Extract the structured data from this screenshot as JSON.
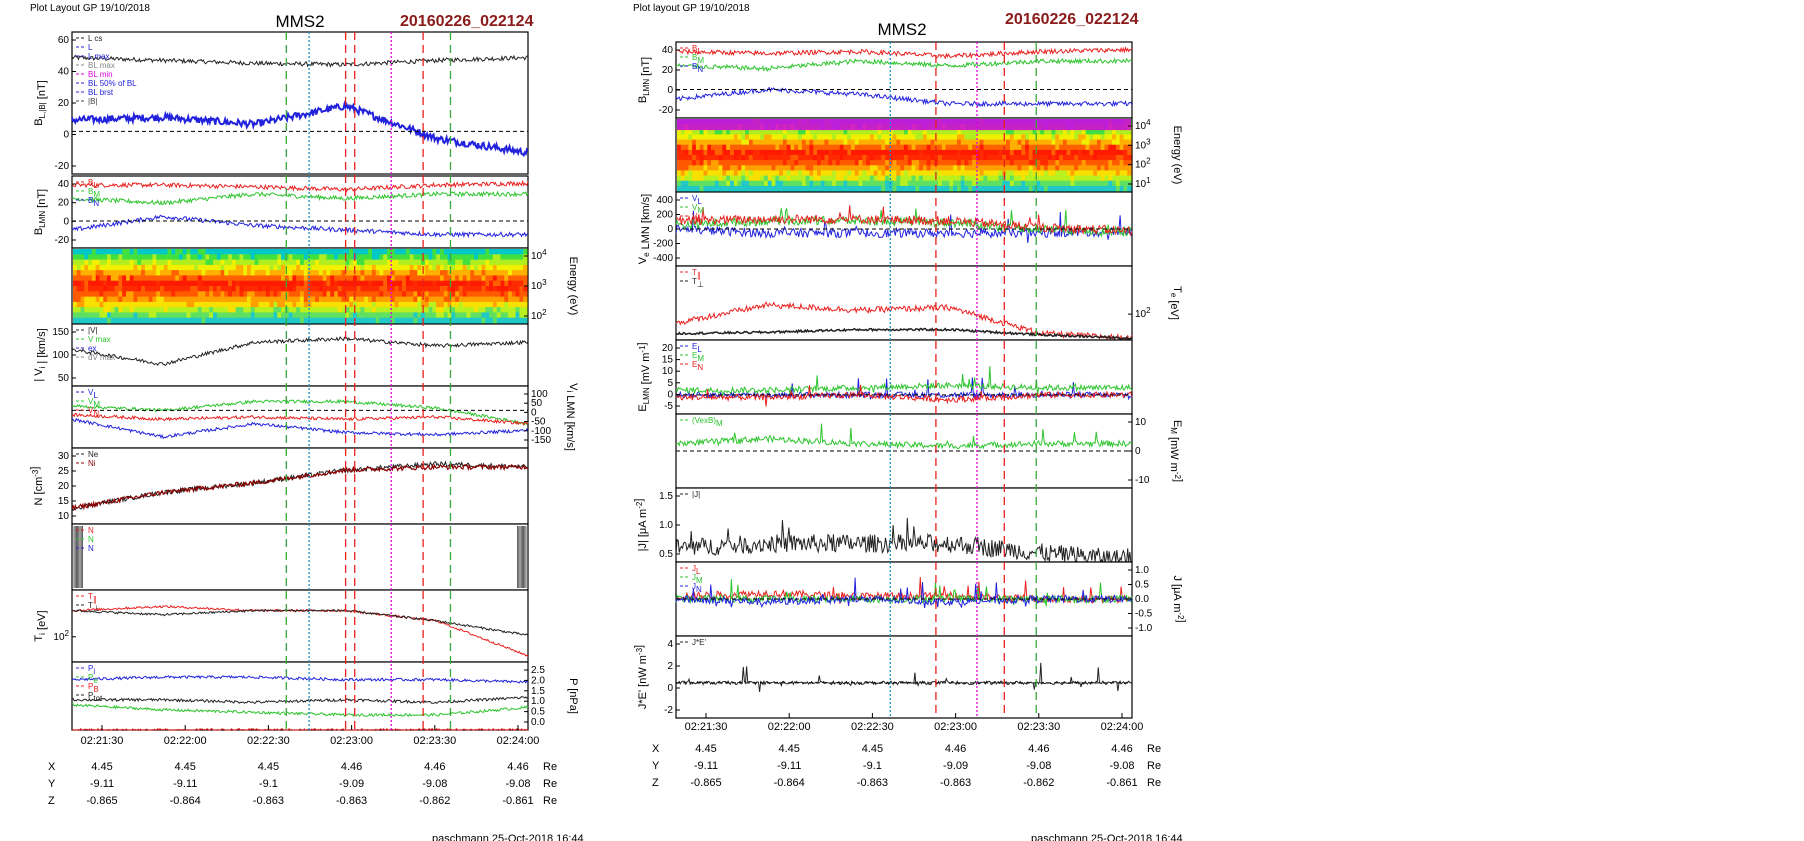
{
  "colors": {
    "brand_red": "#8b1a1a",
    "red": "#e8201e",
    "green": "#2ec42e",
    "blue": "#2222dd",
    "gray": "#707070",
    "magenta": "#dd00dd",
    "cyan": "#1a8fc8",
    "dash_green": "#3aa83a"
  },
  "left": {
    "layout_label": "Plot Layout GP 19/10/2018",
    "spacecraft": "MMS2",
    "event": "20160226_022124",
    "footer": "paschmann 25-Oct-2018 16:44",
    "time_ticks": [
      "02:21:30",
      "02:22:00",
      "02:22:30",
      "02:23:00",
      "02:23:30",
      "02:24:00"
    ],
    "vlines": [
      {
        "t": 47,
        "color": "green",
        "style": "dash"
      },
      {
        "t": 52,
        "color": "cyan",
        "style": "dot"
      },
      {
        "t": 60,
        "color": "red",
        "style": "dash"
      },
      {
        "t": 62,
        "color": "red",
        "style": "dash"
      },
      {
        "t": 70,
        "color": "magenta",
        "style": "dot"
      },
      {
        "t": 77,
        "color": "red",
        "style": "dash"
      },
      {
        "t": 83,
        "color": "green",
        "style": "dash"
      }
    ],
    "coords": {
      "rows": [
        {
          "label": "X",
          "values": [
            "4.45",
            "4.45",
            "4.45",
            "4.46",
            "4.46",
            "4.46"
          ],
          "unit": "Re"
        },
        {
          "label": "Y",
          "values": [
            "-9.11",
            "-9.11",
            "-9.1",
            "-9.09",
            "-9.08",
            "-9.08"
          ],
          "unit": "Re"
        },
        {
          "label": "Z",
          "values": [
            "-0.865",
            "-0.864",
            "-0.863",
            "-0.863",
            "-0.862",
            "-0.861"
          ],
          "unit": "Re"
        }
      ]
    },
    "panels": [
      {
        "ylabel": "B_L,|B| [nT]",
        "ylabel_side": "left",
        "ticks": [
          "60",
          "40",
          "20",
          "0",
          "-20"
        ],
        "legend": [
          "L cs",
          "L",
          "L max",
          "BL max",
          "BL min",
          "BL 50% of BL",
          "BL brst",
          "|B|"
        ]
      },
      {
        "ylabel": "B_LMN [nT]",
        "ylabel_side": "left",
        "ticks": [
          "40",
          "20",
          "0",
          "-20"
        ],
        "legend": [
          "B_L",
          "B_M",
          "B_N"
        ]
      },
      {
        "ylabel": "Energy (eV)",
        "ylabel_side": "right",
        "ticks": [
          "10^4",
          "10^3",
          "10^2"
        ],
        "legend": []
      },
      {
        "ylabel": "| V_i | [km/s]",
        "ylabel_side": "left",
        "ticks": [
          "150",
          "100",
          "50"
        ],
        "legend": [
          "|V|",
          "V max",
          "ex",
          "dV max"
        ]
      },
      {
        "ylabel": "V_i LMN [km/s]",
        "ylabel_side": "right",
        "ticks": [
          "100",
          "50",
          "0",
          "-50",
          "-100",
          "-150"
        ],
        "legend": [
          "V_L",
          "V_M",
          "V_N"
        ]
      },
      {
        "ylabel": "N [cm^-3]",
        "ylabel_side": "left",
        "ticks": [
          "30",
          "25",
          "20",
          "15",
          "10"
        ],
        "legend": [
          "Ne",
          "Ni"
        ]
      },
      {
        "ylabel": "",
        "ylabel_side": "left",
        "ticks": [],
        "legend": [
          "N",
          "N",
          "N"
        ]
      },
      {
        "ylabel": "T_i [eV]",
        "ylabel_side": "left",
        "ticks": [
          "10^2"
        ],
        "legend": [
          "T_∥",
          "T_⊥"
        ]
      },
      {
        "ylabel": "P [nPa]",
        "ylabel_side": "right",
        "ticks": [
          "2.5",
          "2.0",
          "1.5",
          "1.0",
          "0.5",
          "0.0"
        ],
        "legend": [
          "P_i",
          "P_e",
          "P_B",
          "P_tot"
        ]
      }
    ]
  },
  "right": {
    "layout_label": "Plot layout GP 19/10/2018",
    "spacecraft": "MMS2",
    "event": "20160226_022124",
    "footer": "paschmann 25-Oct-2018 16:44",
    "time_ticks": [
      "02:21:30",
      "02:22:00",
      "02:22:30",
      "02:23:00",
      "02:23:30",
      "02:24:00"
    ],
    "vlines": [
      {
        "t": 47,
        "color": "cyan",
        "style": "dot"
      },
      {
        "t": 57,
        "color": "red",
        "style": "dash"
      },
      {
        "t": 66,
        "color": "magenta",
        "style": "dot"
      },
      {
        "t": 72,
        "color": "red",
        "style": "dash"
      },
      {
        "t": 79,
        "color": "green",
        "style": "dash"
      }
    ],
    "coords": {
      "rows": [
        {
          "label": "X",
          "values": [
            "4.45",
            "4.45",
            "4.45",
            "4.46",
            "4.46",
            "4.46"
          ],
          "unit": "Re"
        },
        {
          "label": "Y",
          "values": [
            "-9.11",
            "-9.11",
            "-9.1",
            "-9.09",
            "-9.08",
            "-9.08"
          ],
          "unit": "Re"
        },
        {
          "label": "Z",
          "values": [
            "-0.865",
            "-0.864",
            "-0.863",
            "-0.863",
            "-0.862",
            "-0.861"
          ],
          "unit": "Re"
        }
      ]
    },
    "panels": [
      {
        "ylabel": "B_LMN [nT]",
        "ylabel_side": "left",
        "ticks": [
          "40",
          "20",
          "0",
          "-20"
        ],
        "legend": [
          "B_L",
          "B_M",
          "B_N"
        ]
      },
      {
        "ylabel": "Energy (eV)",
        "ylabel_side": "right",
        "ticks": [
          "10^4",
          "10^3",
          "10^2",
          "10^1"
        ],
        "legend": []
      },
      {
        "ylabel": "V_e LMN [km/s]",
        "ylabel_side": "left",
        "ticks": [
          "400",
          "200",
          "0",
          "-200",
          "-400"
        ],
        "legend": [
          "V_L",
          "V_M",
          "V_N"
        ]
      },
      {
        "ylabel": "T_e [eV]",
        "ylabel_side": "right",
        "ticks": [
          "10^2"
        ],
        "legend": [
          "T_∥",
          "T_⊥"
        ]
      },
      {
        "ylabel": "E_LMN [mV m^-1]",
        "ylabel_side": "left",
        "ticks": [
          "20",
          "15",
          "10",
          "5",
          "0",
          "-5"
        ],
        "legend": [
          "E_L",
          "E_M",
          "E_N"
        ]
      },
      {
        "ylabel": "E_M [mW m^-2]",
        "ylabel_side": "right",
        "ticks": [
          "10",
          "0",
          "-10"
        ],
        "legend": [
          "(VexB)_M"
        ]
      },
      {
        "ylabel": "|J| [μA m^-2]",
        "ylabel_side": "left",
        "ticks": [
          "1.5",
          "1.0",
          "0.5"
        ],
        "legend": [
          "|J|"
        ]
      },
      {
        "ylabel": "J [μA m^-2]",
        "ylabel_side": "right",
        "ticks": [
          "1.0",
          "0.5",
          "0.0",
          "-0.5",
          "-1.0"
        ],
        "legend": [
          "J_L",
          "J_M",
          "J_N"
        ]
      },
      {
        "ylabel": "J*E' [nW m^-3]",
        "ylabel_side": "left",
        "ticks": [
          "4",
          "2",
          "0",
          "-2"
        ],
        "legend": [
          "J*E'"
        ]
      }
    ]
  },
  "chart_data": [
    {
      "type": "line",
      "title": "MMS2 20160226_022124",
      "x_unit": "UT",
      "x": [
        "02:21:30",
        "02:22:00",
        "02:22:30",
        "02:23:00",
        "02:23:30",
        "02:24:00"
      ],
      "panels": [
        {
          "name": "B_L,|B|",
          "ylim": [
            -30,
            70
          ],
          "series": [
            {
              "name": "|B|",
              "color": "gray",
              "values": [
                52,
                50,
                48,
                47,
                50,
                52
              ]
            },
            {
              "name": "L",
              "color": "blue",
              "values": [
                8,
                10,
                5,
                18,
                -5,
                -15
              ]
            }
          ]
        },
        {
          "name": "B_LMN",
          "ylim": [
            -30,
            50
          ],
          "series": [
            {
              "name": "B_L",
              "color": "red",
              "values": [
                40,
                40,
                38,
                35,
                40,
                42
              ]
            },
            {
              "name": "B_M",
              "color": "green",
              "values": [
                25,
                20,
                30,
                25,
                30,
                30
              ]
            },
            {
              "name": "B_N",
              "color": "blue",
              "values": [
                -10,
                5,
                -5,
                -10,
                -15,
                -15
              ]
            }
          ]
        },
        {
          "name": "| V_i |",
          "ylim": [
            0,
            170
          ],
          "series": [
            {
              "name": "|V|",
              "color": "gray",
              "values": [
                100,
                60,
                120,
                130,
                110,
                120
              ]
            }
          ]
        },
        {
          "name": "V_i LMN",
          "ylim": [
            -170,
            110
          ],
          "series": [
            {
              "name": "V_L",
              "color": "blue",
              "values": [
                -40,
                -120,
                -60,
                -100,
                -110,
                -90
              ]
            },
            {
              "name": "V_M",
              "color": "green",
              "values": [
                20,
                0,
                40,
                40,
                10,
                -60
              ]
            },
            {
              "name": "V_N",
              "color": "red",
              "values": [
                -20,
                -40,
                -30,
                -40,
                -30,
                -60
              ]
            }
          ]
        },
        {
          "name": "N",
          "ylim": [
            10,
            34
          ],
          "series": [
            {
              "name": "Ne",
              "color": "red",
              "values": [
                15,
                20,
                23,
                27,
                28,
                28
              ]
            },
            {
              "name": "Ni",
              "color": "gray",
              "values": [
                15,
                20,
                23,
                27,
                29,
                28
              ]
            }
          ]
        },
        {
          "name": "T_i",
          "ylim": [
            50,
            400
          ],
          "series": [
            {
              "name": "T_∥",
              "color": "red",
              "values": [
                300,
                320,
                300,
                300,
                250,
                80
              ]
            },
            {
              "name": "T_⊥",
              "color": "gray",
              "values": [
                300,
                280,
                300,
                300,
                250,
                180
              ]
            }
          ]
        },
        {
          "name": "P",
          "ylim": [
            0,
            2.7
          ],
          "series": [
            {
              "name": "P_B",
              "color": "blue",
              "values": [
                2.0,
                2.1,
                2.1,
                2.0,
                2.0,
                1.9
              ]
            },
            {
              "name": "P_i",
              "color": "green",
              "values": [
                1.0,
                0.8,
                0.7,
                0.6,
                0.6,
                0.9
              ]
            },
            {
              "name": "P_e",
              "color": "red",
              "values": [
                0.0,
                0.0,
                0.0,
                0.0,
                0.0,
                0.0
              ]
            },
            {
              "name": "P_tot",
              "color": "gray",
              "values": [
                1.2,
                1.2,
                1.1,
                1.2,
                1.1,
                1.3
              ]
            }
          ]
        }
      ]
    },
    {
      "type": "line",
      "title": "MMS2 20160226_022124",
      "x_unit": "UT",
      "x": [
        "02:21:30",
        "02:22:00",
        "02:22:30",
        "02:23:00",
        "02:23:30",
        "02:24:00"
      ],
      "panels": [
        {
          "name": "B_LMN",
          "ylim": [
            -30,
            50
          ],
          "series": [
            {
              "name": "B_L",
              "color": "red",
              "values": [
                40,
                38,
                40,
                35,
                40,
                42
              ]
            },
            {
              "name": "B_M",
              "color": "green",
              "values": [
                25,
                22,
                30,
                25,
                30,
                30
              ]
            },
            {
              "name": "B_N",
              "color": "blue",
              "values": [
                -10,
                0,
                -5,
                -15,
                -15,
                -15
              ]
            }
          ]
        },
        {
          "name": "V_e LMN",
          "ylim": [
            -450,
            450
          ],
          "series": [
            {
              "name": "V_L",
              "color": "blue",
              "values": [
                0,
                -50,
                -50,
                -50,
                -50,
                -30
              ]
            },
            {
              "name": "V_M",
              "color": "green",
              "values": [
                50,
                100,
                100,
                80,
                0,
                -30
              ]
            },
            {
              "name": "V_N",
              "color": "red",
              "values": [
                100,
                120,
                120,
                100,
                20,
                -20
              ]
            }
          ]
        },
        {
          "name": "T_e",
          "ylim": [
            15,
            300
          ],
          "series": [
            {
              "name": "T_∥",
              "color": "red",
              "values": [
                80,
                150,
                130,
                140,
                40,
                22
              ]
            },
            {
              "name": "T_⊥",
              "color": "gray",
              "values": [
                40,
                45,
                55,
                55,
                35,
                22
              ]
            }
          ]
        },
        {
          "name": "E_LMN",
          "ylim": [
            -8,
            23
          ],
          "series": [
            {
              "name": "E_L",
              "color": "blue",
              "values": [
                0,
                0,
                0,
                0,
                0,
                0
              ]
            },
            {
              "name": "E_M",
              "color": "green",
              "values": [
                2,
                2,
                3,
                4,
                3,
                3
              ]
            },
            {
              "name": "E_N",
              "color": "red",
              "values": [
                -1,
                -1,
                0,
                -2,
                0,
                0
              ]
            }
          ]
        },
        {
          "name": "E_M",
          "ylim": [
            -15,
            15
          ],
          "series": [
            {
              "name": "(VexB)_M",
              "color": "green",
              "values": [
                3,
                5,
                3,
                2,
                3,
                3
              ]
            }
          ]
        },
        {
          "name": "|J|",
          "ylim": [
            0,
            1.6
          ],
          "series": [
            {
              "name": "|J|",
              "color": "gray",
              "values": [
                0.3,
                0.4,
                0.4,
                0.4,
                0.2,
                0.05
              ]
            }
          ]
        },
        {
          "name": "J",
          "ylim": [
            -1.3,
            1.3
          ],
          "series": [
            {
              "name": "J_N",
              "color": "red",
              "values": [
                0.1,
                0.2,
                0.1,
                0.1,
                0.0,
                0.0
              ]
            },
            {
              "name": "J_M",
              "color": "green",
              "values": [
                0.0,
                0.0,
                0.0,
                0.0,
                0.0,
                0.0
              ]
            },
            {
              "name": "J_L",
              "color": "blue",
              "values": [
                0.0,
                -0.1,
                0.0,
                -0.1,
                0.0,
                0.0
              ]
            }
          ]
        },
        {
          "name": "J*E'",
          "ylim": [
            -3,
            4
          ],
          "series": [
            {
              "name": "J*E'",
              "color": "gray",
              "values": [
                0.0,
                0.0,
                0.0,
                0.0,
                0.0,
                0.0
              ]
            }
          ]
        }
      ]
    }
  ]
}
